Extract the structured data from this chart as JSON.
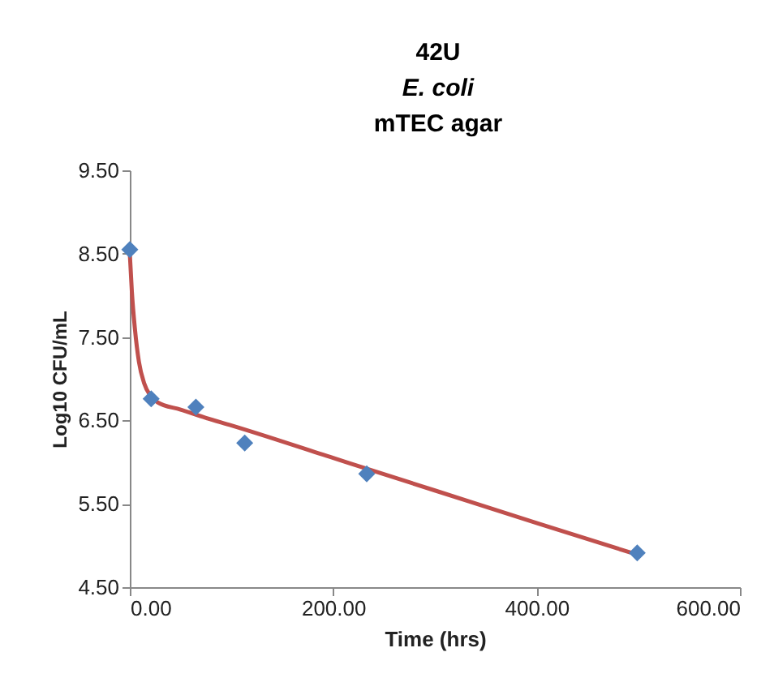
{
  "chart_data": {
    "type": "scatter",
    "title": "42U",
    "subtitle": "E. coli",
    "annotations": [
      "mTEC agar"
    ],
    "xlabel": "Time (hrs)",
    "ylabel": "Log10 CFU/mL",
    "xlim": [
      0,
      600
    ],
    "xticks": [
      {
        "value": 0,
        "label": "0.00"
      },
      {
        "value": 200,
        "label": "200.00"
      },
      {
        "value": 400,
        "label": "400.00"
      },
      {
        "value": 600,
        "label": "600.00"
      }
    ],
    "ylim": [
      4.5,
      9.5
    ],
    "yticks": [
      {
        "value": 4.5,
        "label": "4.50"
      },
      {
        "value": 5.5,
        "label": "5.50"
      },
      {
        "value": 6.5,
        "label": "6.50"
      },
      {
        "value": 7.5,
        "label": "7.50"
      },
      {
        "value": 8.5,
        "label": "8.50"
      },
      {
        "value": 9.5,
        "label": "9.50"
      }
    ],
    "grid": false,
    "series": [
      {
        "type": "line",
        "color": "#c0504d",
        "marker": "none",
        "line_style": "solid",
        "x": [
          0,
          2,
          5,
          9,
          14,
          20,
          27,
          50,
          75,
          100,
          200,
          300,
          400,
          499
        ],
        "values": [
          8.5,
          8.05,
          7.6,
          7.2,
          6.95,
          6.8,
          6.72,
          6.63,
          6.53,
          6.44,
          6.05,
          5.66,
          5.27,
          4.89
        ]
      },
      {
        "color": "#4f81bd",
        "marker": "diamond",
        "x": [
          0,
          21,
          65,
          113,
          233,
          499
        ],
        "values": [
          8.55,
          6.76,
          6.66,
          6.23,
          5.86,
          4.91
        ]
      }
    ]
  }
}
